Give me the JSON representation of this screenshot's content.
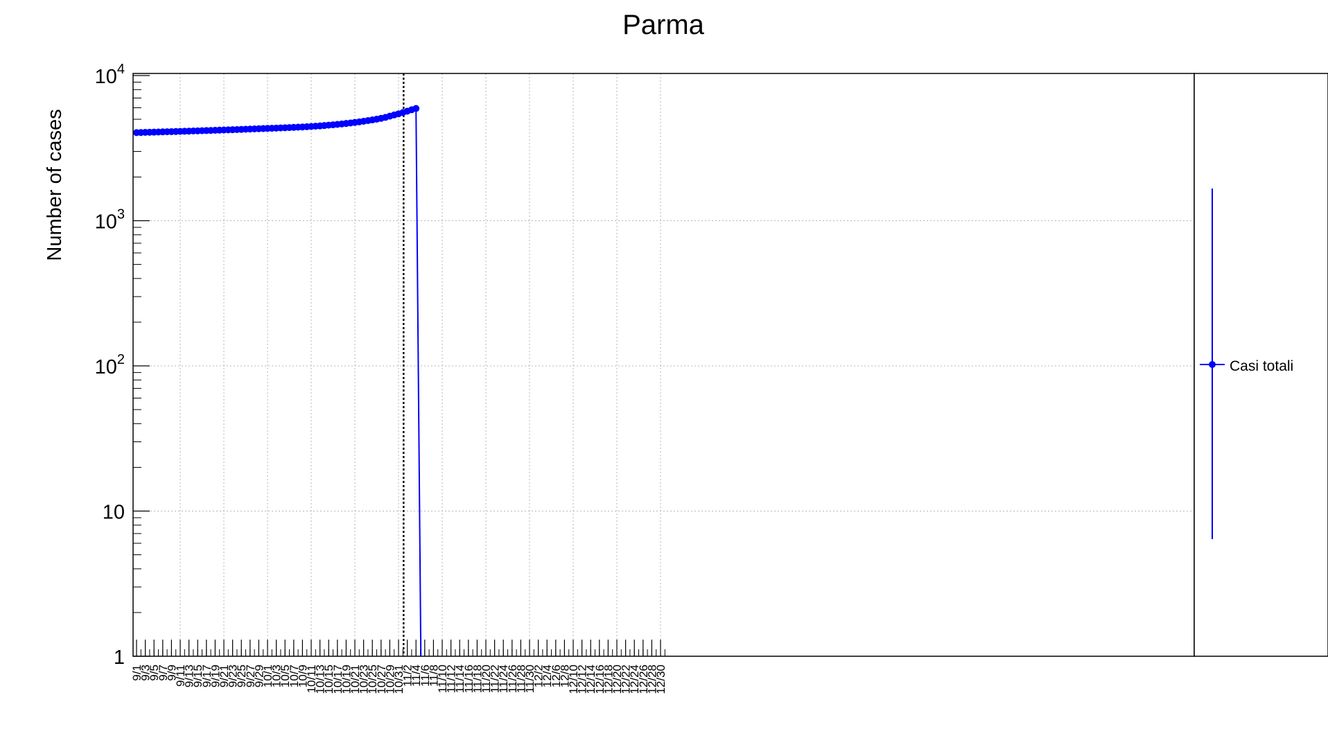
{
  "chart_data": {
    "type": "line",
    "title": "Parma",
    "ylabel": "Number of cases",
    "xlabel": "",
    "y_scale": "log",
    "ylim": [
      1,
      10000
    ],
    "y_ticks": [
      {
        "value": 1,
        "base": "1",
        "exp": ""
      },
      {
        "value": 10,
        "base": "10",
        "exp": ""
      },
      {
        "value": 100,
        "base": "10",
        "exp": "2"
      },
      {
        "value": 1000,
        "base": "10",
        "exp": "3"
      },
      {
        "value": 10000,
        "base": "10",
        "exp": "4"
      }
    ],
    "x_tick_labels": [
      "9/1",
      "9/3",
      "9/5",
      "9/7",
      "9/9",
      "9/11",
      "9/13",
      "9/15",
      "9/17",
      "9/19",
      "9/21",
      "9/23",
      "9/25",
      "9/27",
      "9/29",
      "10/1",
      "10/3",
      "10/5",
      "10/7",
      "10/9",
      "10/11",
      "10/13",
      "10/15",
      "10/17",
      "10/19",
      "10/21",
      "10/23",
      "10/25",
      "10/27",
      "10/29",
      "10/31",
      "11/2",
      "11/4",
      "11/6",
      "11/8",
      "11/10",
      "11/12",
      "11/14",
      "11/16",
      "11/18",
      "11/20",
      "11/22",
      "11/24",
      "11/26",
      "11/28",
      "11/30",
      "12/2",
      "12/4",
      "12/6",
      "12/8",
      "12/10",
      "12/12",
      "12/14",
      "12/16",
      "12/18",
      "12/20",
      "12/22",
      "12/24",
      "12/26",
      "12/28",
      "12/30"
    ],
    "grid": true,
    "vertical_marker_date": "11/1",
    "colors": {
      "series": "#0000ff",
      "marker_line": "#000000",
      "grid": "#b4b4b4"
    },
    "legend_position": "right",
    "series": [
      {
        "name": "Casi totali",
        "x_start": "9/1",
        "x_step_days": 1,
        "values": [
          4045,
          4052,
          4060,
          4068,
          4076,
          4084,
          4092,
          4100,
          4108,
          4116,
          4124,
          4132,
          4141,
          4150,
          4159,
          4168,
          4177,
          4186,
          4196,
          4206,
          4216,
          4226,
          4236,
          4246,
          4257,
          4268,
          4279,
          4290,
          4301,
          4312,
          4323,
          4334,
          4346,
          4358,
          4370,
          4382,
          4395,
          4409,
          4424,
          4440,
          4458,
          4478,
          4500,
          4524,
          4550,
          4578,
          4608,
          4640,
          4675,
          4713,
          4753,
          4796,
          4842,
          4892,
          4946,
          5005,
          5070,
          5150,
          5250,
          5350,
          5450,
          5560,
          5680,
          5810,
          5930
        ]
      }
    ]
  }
}
